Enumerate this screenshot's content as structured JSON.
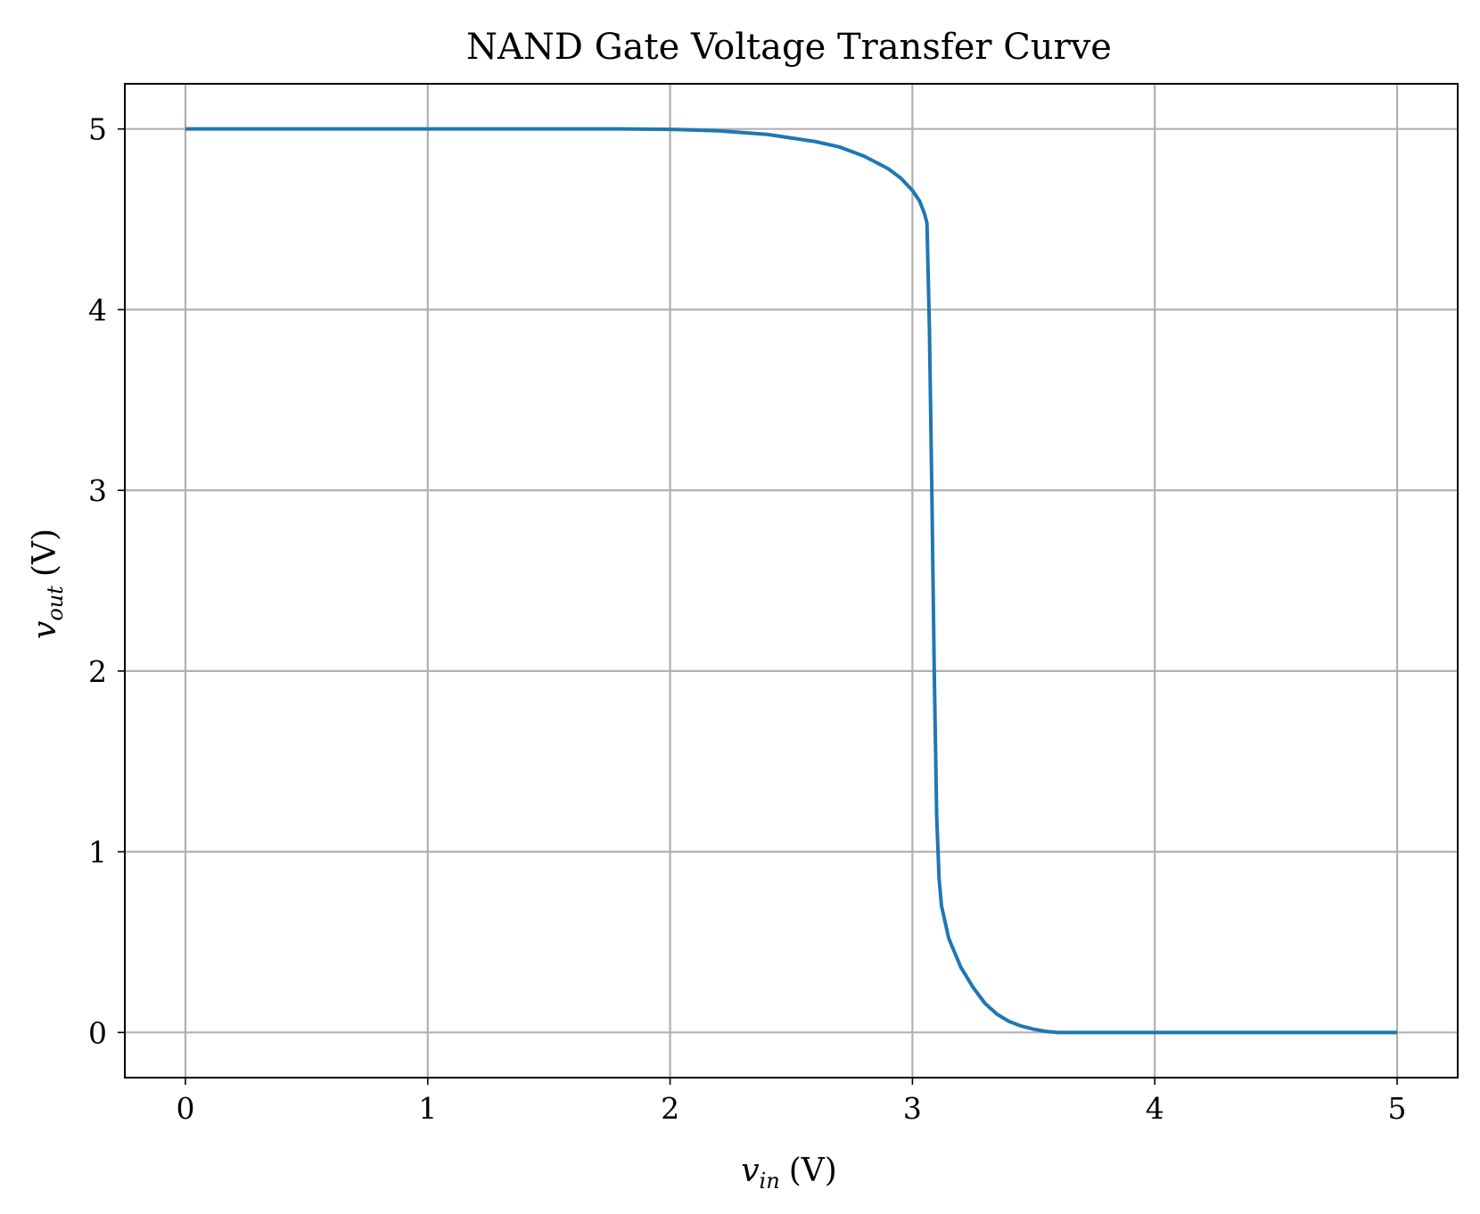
{
  "chart_data": {
    "type": "line",
    "title": "NAND Gate Voltage Transfer Curve",
    "xlabel": {
      "var": "v",
      "sub": "in",
      "unit": "(V)"
    },
    "ylabel": {
      "var": "v",
      "sub": "out",
      "unit": "(V)"
    },
    "xlim": [
      -0.25,
      5.25
    ],
    "ylim": [
      -0.25,
      5.25
    ],
    "xticks": [
      0,
      1,
      2,
      3,
      4,
      5
    ],
    "yticks": [
      0,
      1,
      2,
      3,
      4,
      5
    ],
    "xtick_labels": [
      "0",
      "1",
      "2",
      "3",
      "4",
      "5"
    ],
    "ytick_labels": [
      "0",
      "1",
      "2",
      "3",
      "4",
      "5"
    ],
    "grid": true,
    "legend": false,
    "series": [
      {
        "color": "#1f77b4",
        "x": [
          0,
          0.5,
          1.0,
          1.5,
          1.8,
          2.0,
          2.2,
          2.4,
          2.6,
          2.7,
          2.8,
          2.9,
          2.95,
          3.0,
          3.03,
          3.05,
          3.06,
          3.07,
          3.08,
          3.09,
          3.1,
          3.11,
          3.12,
          3.15,
          3.2,
          3.25,
          3.3,
          3.35,
          3.4,
          3.45,
          3.5,
          3.55,
          3.58,
          3.6,
          4.0,
          4.5,
          5.0
        ],
        "y": [
          5.0,
          5.0,
          5.0,
          5.0,
          5.0,
          4.998,
          4.99,
          4.97,
          4.93,
          4.9,
          4.85,
          4.78,
          4.73,
          4.66,
          4.6,
          4.53,
          4.48,
          3.9,
          3.0,
          2.0,
          1.2,
          0.85,
          0.7,
          0.52,
          0.36,
          0.25,
          0.16,
          0.1,
          0.06,
          0.035,
          0.018,
          0.006,
          0.002,
          0.0,
          0.0,
          0.0,
          0.0
        ]
      }
    ]
  }
}
